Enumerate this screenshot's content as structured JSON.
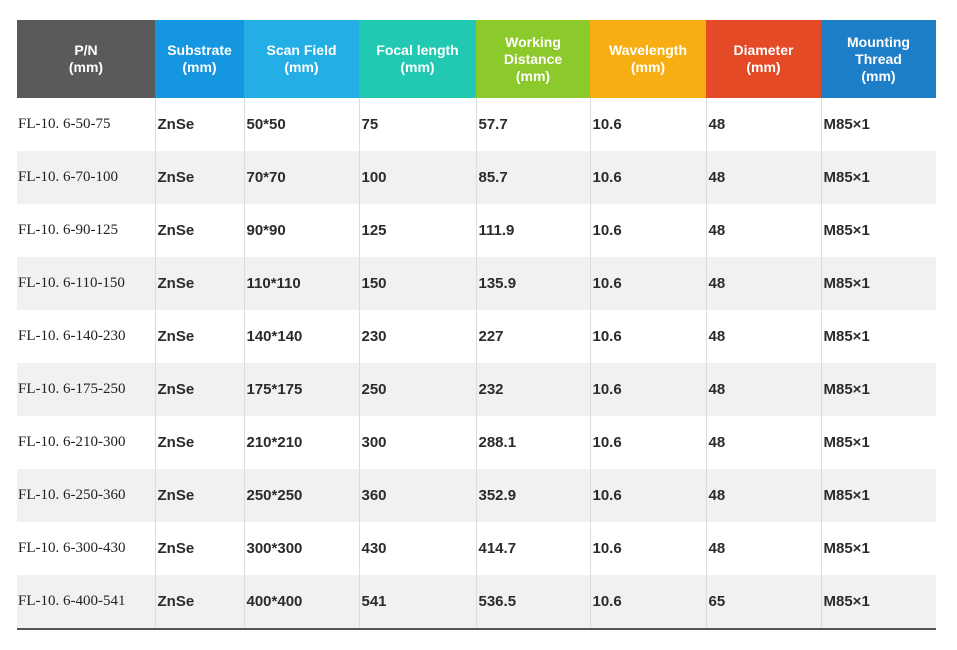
{
  "table": {
    "columns": [
      {
        "label": [
          "P/N",
          "(mm)"
        ],
        "color": "#5a5a5a"
      },
      {
        "label": [
          "Substrate",
          "(mm)"
        ],
        "color": "#1496e0"
      },
      {
        "label": [
          "Scan Field",
          "(mm)"
        ],
        "color": "#23aee6"
      },
      {
        "label": [
          "Focal length",
          "(mm)"
        ],
        "color": "#22c9b2"
      },
      {
        "label": [
          "Working",
          "Distance",
          "(mm)"
        ],
        "color": "#8cc92a"
      },
      {
        "label": [
          "Wavelength",
          "(mm)"
        ],
        "color": "#f7ae12"
      },
      {
        "label": [
          "Diameter",
          "(mm)"
        ],
        "color": "#e44a25"
      },
      {
        "label": [
          "Mounting",
          "Thread",
          "(mm)"
        ],
        "color": "#1d7fc8"
      }
    ],
    "rows": [
      [
        "FL-10. 6-50-75",
        "ZnSe",
        "50*50",
        "75",
        "57.7",
        "10.6",
        "48",
        "M85×1"
      ],
      [
        "FL-10. 6-70-100",
        "ZnSe",
        "70*70",
        "100",
        "85.7",
        "10.6",
        "48",
        "M85×1"
      ],
      [
        "FL-10. 6-90-125",
        "ZnSe",
        "90*90",
        "125",
        "111.9",
        "10.6",
        "48",
        "M85×1"
      ],
      [
        "FL-10. 6-110-150",
        "ZnSe",
        "110*110",
        "150",
        "135.9",
        "10.6",
        "48",
        "M85×1"
      ],
      [
        "FL-10. 6-140-230",
        "ZnSe",
        "140*140",
        "230",
        "227",
        "10.6",
        "48",
        "M85×1"
      ],
      [
        "FL-10. 6-175-250",
        "ZnSe",
        "175*175",
        "250",
        "232",
        "10.6",
        "48",
        "M85×1"
      ],
      [
        "FL-10. 6-210-300",
        "ZnSe",
        "210*210",
        "300",
        "288.1",
        "10.6",
        "48",
        "M85×1"
      ],
      [
        "FL-10. 6-250-360",
        "ZnSe",
        "250*250",
        "360",
        "352.9",
        "10.6",
        "48",
        "M85×1"
      ],
      [
        "FL-10. 6-300-430",
        "ZnSe",
        "300*300",
        "430",
        "414.7",
        "10.6",
        "48",
        "M85×1"
      ],
      [
        "FL-10. 6-400-541",
        "ZnSe",
        "400*400",
        "541",
        "536.5",
        "10.6",
        "65",
        "M85×1"
      ]
    ]
  }
}
